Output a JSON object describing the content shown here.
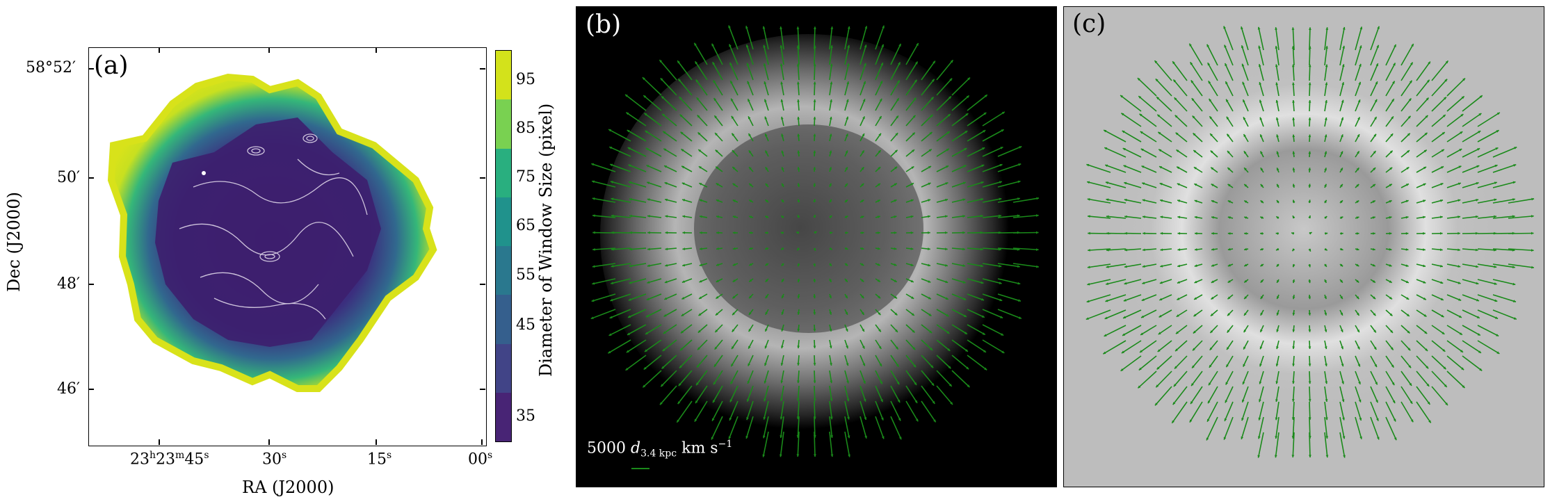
{
  "panel_a": {
    "letter": "(a)",
    "y_ticks": [
      "58°52′",
      "50′",
      "48′",
      "46′"
    ],
    "x_ticks": [
      {
        "h": "23",
        "m": "23",
        "s": "45"
      },
      {
        "s": "30"
      },
      {
        "s": "15"
      },
      {
        "s": "00"
      }
    ],
    "x_tick_text": [
      "23h23m45s",
      "30s",
      "15s",
      "00s"
    ],
    "xlabel": "RA (J2000)",
    "ylabel": "Dec (J2000)",
    "colorbar": {
      "label": "Diameter of Window Size (pixel)",
      "ticks": [
        "95",
        "85",
        "75",
        "65",
        "55",
        "45",
        "35"
      ],
      "colors": [
        "#440154",
        "#472c7a",
        "#3b518b",
        "#2c718e",
        "#21908d",
        "#27ad81",
        "#5cc863",
        "#aadc32",
        "#d3e21b"
      ]
    }
  },
  "panel_b": {
    "letter": "(b)",
    "scale_value": "5000",
    "scale_var": "d",
    "scale_sub": "3.4 kpc",
    "scale_unit": "km s",
    "scale_exp": "−1",
    "arrow_color": "#1a8a1a"
  },
  "panel_c": {
    "letter": "(c)",
    "arrow_color": "#1a8a1a"
  }
}
